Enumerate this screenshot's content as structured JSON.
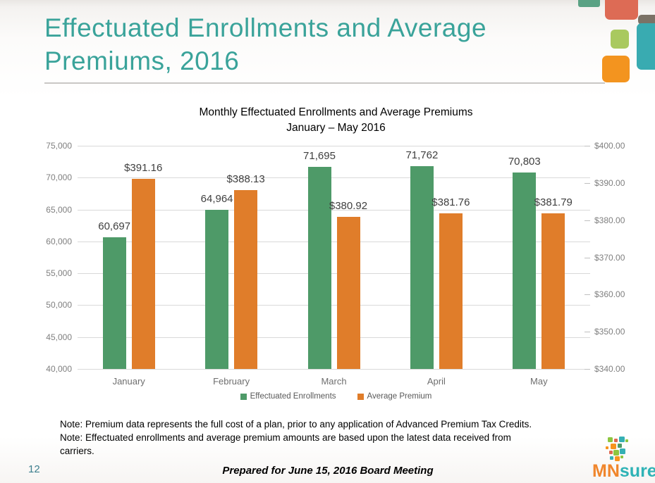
{
  "slide": {
    "title": "Effectuated Enrollments and Average Premiums, 2016",
    "page_number": "12",
    "footer": "Prepared for June 15, 2016 Board Meeting",
    "note_lines": [
      "Note: Premium data represents the full cost of a plan, prior to any application of Advanced Premium Tax Credits.",
      "Note: Effectuated enrollments and average premium amounts are based upon the latest data received from",
      "carriers."
    ],
    "logo": {
      "mn": "MN",
      "sure": "sure"
    }
  },
  "colors": {
    "title_teal": "#3aa39a",
    "enrollment_green": "#4e9a68",
    "premium_orange": "#e07d2a",
    "deco_coral": "#dd6b55",
    "deco_teal": "#39abb1",
    "deco_light_green": "#a9c95f",
    "deco_orange": "#f3941f",
    "deco_gray": "#7b7266",
    "deco_dark_green": "#5aa284"
  },
  "chart_data": {
    "type": "bar",
    "title": "Monthly Effectuated Enrollments and Average Premiums",
    "subtitle": "January – May 2016",
    "categories": [
      "January",
      "February",
      "March",
      "April",
      "May"
    ],
    "series": [
      {
        "name": "Effectuated Enrollments",
        "axis": "left",
        "color": "#4e9a68",
        "values": [
          60697,
          64964,
          71695,
          71762,
          70803
        ],
        "labels": [
          "60,697",
          "64,964",
          "71,695",
          "71,762",
          "70,803"
        ]
      },
      {
        "name": "Average Premium",
        "axis": "right",
        "color": "#e07d2a",
        "values": [
          391.16,
          388.13,
          380.92,
          381.76,
          381.79
        ],
        "labels": [
          "$391.16",
          "$388.13",
          "$380.92",
          "$381.76",
          "$381.79"
        ]
      }
    ],
    "left_axis": {
      "min": 40000,
      "max": 75000,
      "tick_labels": [
        "75,000",
        "70,000",
        "65,000",
        "60,000",
        "55,000",
        "50,000",
        "45,000",
        "40,000"
      ]
    },
    "right_axis": {
      "min": 340,
      "max": 400,
      "tick_labels": [
        "$400.00",
        "$390.00",
        "$380.00",
        "$370.00",
        "$360.00",
        "$350.00",
        "$340.00"
      ]
    },
    "grid": true,
    "legend_position": "bottom"
  }
}
